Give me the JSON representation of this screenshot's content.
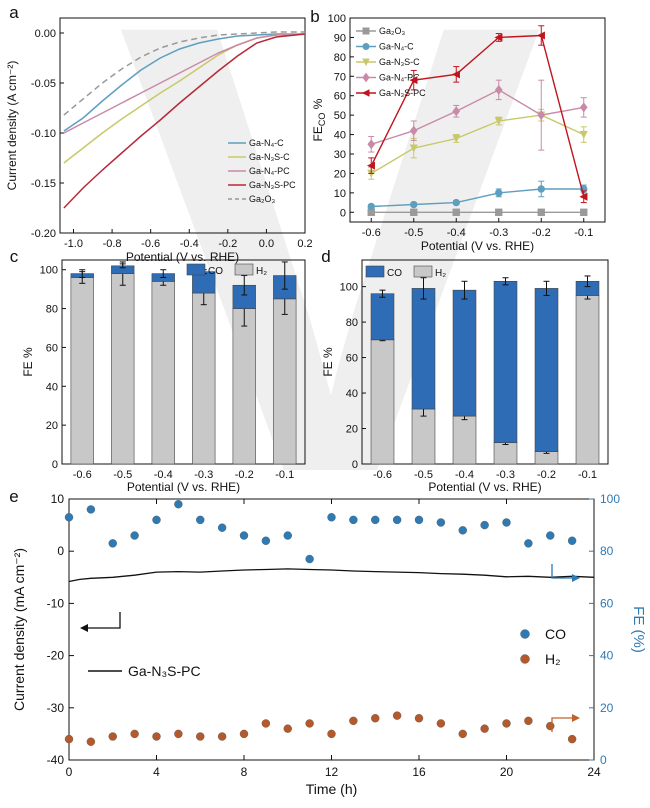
{
  "figure": {
    "watermark_glyph": "V",
    "panel_letters": [
      "a",
      "b",
      "c",
      "d",
      "e"
    ]
  },
  "chart_data": [
    {
      "panel": "a",
      "type": "line",
      "xlabel": "Potential (V vs. RHE)",
      "ylabel": "Current density (A cm⁻²)",
      "xlim": [
        -1.07,
        0.2
      ],
      "ylim": [
        -0.2,
        0.015
      ],
      "xticks": [
        -1.0,
        -0.8,
        -0.6,
        -0.4,
        -0.2,
        0.0,
        0.2
      ],
      "xtick_labels": [
        "-1.0",
        "-0.8",
        "-0.6",
        "-0.4",
        "-0.2",
        "0.0",
        "0.2"
      ],
      "yticks": [
        -0.2,
        -0.15,
        -0.1,
        -0.05,
        0.0
      ],
      "ytick_labels": [
        "-0.20",
        "-0.15",
        "-0.10",
        "-0.05",
        "0.00"
      ],
      "series": [
        {
          "name": "Ga-N₄-C",
          "color": "#5e9fbf",
          "dash": "",
          "x": [
            -1.05,
            -0.95,
            -0.85,
            -0.75,
            -0.65,
            -0.55,
            -0.45,
            -0.35,
            -0.25,
            -0.15,
            -0.05,
            0.05,
            0.2
          ],
          "y": [
            -0.098,
            -0.085,
            -0.068,
            -0.052,
            -0.037,
            -0.025,
            -0.016,
            -0.01,
            -0.006,
            -0.003,
            -0.002,
            -0.001,
            -0.001
          ]
        },
        {
          "name": "Ga-N₃S-C",
          "color": "#c8c86a",
          "dash": "",
          "x": [
            -1.05,
            -0.95,
            -0.85,
            -0.75,
            -0.65,
            -0.55,
            -0.45,
            -0.35,
            -0.25,
            -0.15,
            -0.05,
            0.05,
            0.2
          ],
          "y": [
            -0.13,
            -0.115,
            -0.1,
            -0.086,
            -0.073,
            -0.06,
            -0.048,
            -0.035,
            -0.022,
            -0.012,
            -0.005,
            -0.002,
            -0.001
          ]
        },
        {
          "name": "Ga-N₄-PC",
          "color": "#c98aa8",
          "dash": "",
          "x": [
            -1.05,
            -0.95,
            -0.85,
            -0.75,
            -0.65,
            -0.55,
            -0.45,
            -0.35,
            -0.25,
            -0.15,
            -0.05,
            0.05,
            0.2
          ],
          "y": [
            -0.1,
            -0.09,
            -0.08,
            -0.07,
            -0.06,
            -0.05,
            -0.04,
            -0.03,
            -0.02,
            -0.012,
            -0.005,
            -0.002,
            -0.001
          ]
        },
        {
          "name": "Ga-N₃S-PC",
          "color": "#b52a3a",
          "dash": "",
          "x": [
            -1.05,
            -0.95,
            -0.85,
            -0.75,
            -0.65,
            -0.55,
            -0.45,
            -0.35,
            -0.25,
            -0.15,
            -0.05,
            0.05,
            0.2
          ],
          "y": [
            -0.175,
            -0.155,
            -0.137,
            -0.12,
            -0.103,
            -0.087,
            -0.07,
            -0.054,
            -0.038,
            -0.023,
            -0.01,
            -0.004,
            -0.001
          ]
        },
        {
          "name": "Ga₂O₃",
          "color": "#999999",
          "dash": "6,4",
          "x": [
            -1.05,
            -0.95,
            -0.85,
            -0.75,
            -0.65,
            -0.55,
            -0.45,
            -0.35,
            -0.25,
            -0.15,
            -0.05,
            0.05,
            0.2
          ],
          "y": [
            -0.082,
            -0.066,
            -0.05,
            -0.036,
            -0.024,
            -0.015,
            -0.009,
            -0.005,
            -0.002,
            -0.001,
            0.0,
            0.001,
            0.001
          ]
        }
      ],
      "legend_position": "bottom-right"
    },
    {
      "panel": "b",
      "type": "line",
      "xlabel": "Potential (V vs. RHE)",
      "ylabel": "FECO %",
      "ylabel_main": "FE",
      "ylabel_sub": "CO",
      "ylabel_tail": " %",
      "xlim": [
        -0.65,
        -0.05
      ],
      "ylim": [
        -5,
        100
      ],
      "xticks": [
        -0.6,
        -0.5,
        -0.4,
        -0.3,
        -0.2,
        -0.1
      ],
      "xtick_labels": [
        "-0.6",
        "-0.5",
        "-0.4",
        "-0.3",
        "-0.2",
        "-0.1"
      ],
      "yticks": [
        0,
        10,
        20,
        30,
        40,
        50,
        60,
        70,
        80,
        90,
        100
      ],
      "ytick_labels": [
        "0",
        "10",
        "20",
        "30",
        "40",
        "50",
        "60",
        "70",
        "80",
        "90",
        "100"
      ],
      "x": [
        -0.6,
        -0.5,
        -0.4,
        -0.3,
        -0.2,
        -0.1
      ],
      "series": [
        {
          "name": "Ga₂O₃",
          "color": "#9a9a9a",
          "marker": "square",
          "values": [
            0,
            0,
            0,
            0,
            0,
            0
          ],
          "errors": [
            0.5,
            0.5,
            0.5,
            0.5,
            0.5,
            0.5
          ]
        },
        {
          "name": "Ga-N₄-C",
          "color": "#5e9fbf",
          "marker": "circle",
          "values": [
            3,
            4,
            5,
            10,
            12,
            12
          ],
          "errors": [
            1,
            1,
            1,
            2,
            4,
            2
          ]
        },
        {
          "name": "Ga-N₃S-C",
          "color": "#c8c86a",
          "marker": "triangle-down",
          "values": [
            20,
            33,
            38,
            47,
            50,
            40
          ],
          "errors": [
            3,
            5,
            2,
            2,
            3,
            4
          ]
        },
        {
          "name": "Ga-N₄-PC",
          "color": "#c98aa8",
          "marker": "diamond",
          "values": [
            35,
            42,
            52,
            63,
            50,
            54
          ],
          "errors": [
            4,
            5,
            3,
            5,
            18,
            5
          ]
        },
        {
          "name": "Ga-N₃S-PC",
          "color": "#c0141e",
          "marker": "triangle-left",
          "values": [
            24,
            68,
            71,
            90,
            91,
            8
          ],
          "errors": [
            4,
            5,
            4,
            2,
            5,
            3
          ]
        }
      ],
      "legend_position": "top-left"
    },
    {
      "panel": "c",
      "type": "bar",
      "stacked": true,
      "xlabel": "Potential (V vs. RHE)",
      "ylabel": "FE %",
      "ylim": [
        0,
        105
      ],
      "yticks": [
        0,
        20,
        40,
        60,
        80,
        100
      ],
      "ytick_labels": [
        "0",
        "20",
        "40",
        "60",
        "80",
        "100"
      ],
      "categories": [
        "-0.6",
        "-0.5",
        "-0.4",
        "-0.3",
        "-0.2",
        "-0.1"
      ],
      "series": [
        {
          "name": "H₂",
          "color": "#c8c8c8",
          "values": [
            96,
            98,
            94,
            88,
            80,
            85
          ],
          "errors": [
            3,
            6,
            2,
            6,
            9,
            8
          ]
        },
        {
          "name": "CO",
          "color": "#2e6db5",
          "values": [
            2,
            4,
            4,
            11,
            12,
            12
          ],
          "errors": [
            2,
            1,
            2,
            1,
            5,
            7
          ]
        }
      ],
      "legend_position": "top-right"
    },
    {
      "panel": "d",
      "type": "bar",
      "stacked": true,
      "xlabel": "Potential (V vs. RHE)",
      "ylabel": "FE %",
      "ylim": [
        0,
        115
      ],
      "yticks": [
        0,
        20,
        40,
        60,
        80,
        100
      ],
      "ytick_labels": [
        "0",
        "20",
        "40",
        "60",
        "80",
        "100"
      ],
      "categories": [
        "-0.6",
        "-0.5",
        "-0.4",
        "-0.3",
        "-0.2",
        "-0.1"
      ],
      "series": [
        {
          "name": "H₂",
          "color": "#c8c8c8",
          "values": [
            70,
            31,
            27,
            12,
            7,
            95
          ],
          "errors": [
            0.5,
            4,
            2,
            1,
            1,
            2
          ]
        },
        {
          "name": "CO",
          "color": "#2e6db5",
          "values": [
            26,
            68,
            71,
            91,
            92,
            8
          ],
          "errors": [
            2,
            6,
            5,
            2,
            4,
            3
          ]
        }
      ],
      "legend_position": "top-left"
    },
    {
      "panel": "e",
      "type": "scatter",
      "xlabel": "Time (h)",
      "ylabel": "Current density (mA cm⁻²)",
      "ylabel_right": "FE (%)",
      "xlim": [
        0,
        24
      ],
      "ylim": [
        -40,
        10
      ],
      "ylim_right": [
        0,
        100
      ],
      "xticks": [
        0,
        4,
        8,
        12,
        16,
        20,
        24
      ],
      "xtick_labels": [
        "0",
        "4",
        "8",
        "12",
        "16",
        "20",
        "24"
      ],
      "yticks": [
        -40,
        -30,
        -20,
        -10,
        0,
        10
      ],
      "ytick_labels": [
        "-40",
        "-30",
        "-20",
        "-10",
        "0",
        "10"
      ],
      "yticks_right": [
        0,
        20,
        40,
        60,
        80,
        100
      ],
      "ytick_labels_right": [
        "0",
        "20",
        "40",
        "60",
        "80",
        "100"
      ],
      "current_series": {
        "name": "Ga-N₃S-PC",
        "color": "#111111",
        "x": [
          0,
          0.5,
          1,
          2,
          3,
          4,
          5,
          6,
          7,
          8,
          9,
          10,
          11,
          12,
          13,
          14,
          15,
          16,
          17,
          18,
          19,
          20,
          21,
          22,
          23,
          24
        ],
        "y": [
          -5.8,
          -5.4,
          -5.2,
          -5.0,
          -4.6,
          -4.0,
          -3.9,
          -4.0,
          -3.8,
          -3.6,
          -3.5,
          -3.4,
          -3.5,
          -3.6,
          -3.8,
          -3.9,
          -4.0,
          -4.1,
          -4.3,
          -4.4,
          -4.6,
          -4.9,
          -4.8,
          -5.0,
          -4.8,
          -5.0
        ]
      },
      "co_fe": {
        "name": "CO",
        "color": "#2e7ab5",
        "time": [
          0,
          1,
          2,
          3,
          4,
          5,
          6,
          7,
          8,
          9,
          10,
          11,
          12,
          13,
          14,
          15,
          16,
          17,
          18,
          19,
          20,
          21,
          22,
          23
        ],
        "values": [
          93,
          96,
          83,
          86,
          92,
          98,
          92,
          89,
          86,
          84,
          86,
          77,
          93,
          92,
          92,
          92,
          92,
          91,
          88,
          90,
          91,
          83,
          86,
          84
        ]
      },
      "h2_fe": {
        "name": "H₂",
        "color": "#b5592a",
        "time": [
          0,
          1,
          2,
          3,
          4,
          5,
          6,
          7,
          8,
          9,
          10,
          11,
          12,
          13,
          14,
          15,
          16,
          17,
          18,
          19,
          20,
          21,
          22,
          23
        ],
        "values": [
          8,
          7,
          9,
          10,
          9,
          10,
          9,
          9,
          10,
          14,
          12,
          14,
          10,
          15,
          16,
          17,
          16,
          14,
          10,
          12,
          14,
          15,
          13,
          8
        ]
      },
      "legend_position": "right"
    }
  ]
}
